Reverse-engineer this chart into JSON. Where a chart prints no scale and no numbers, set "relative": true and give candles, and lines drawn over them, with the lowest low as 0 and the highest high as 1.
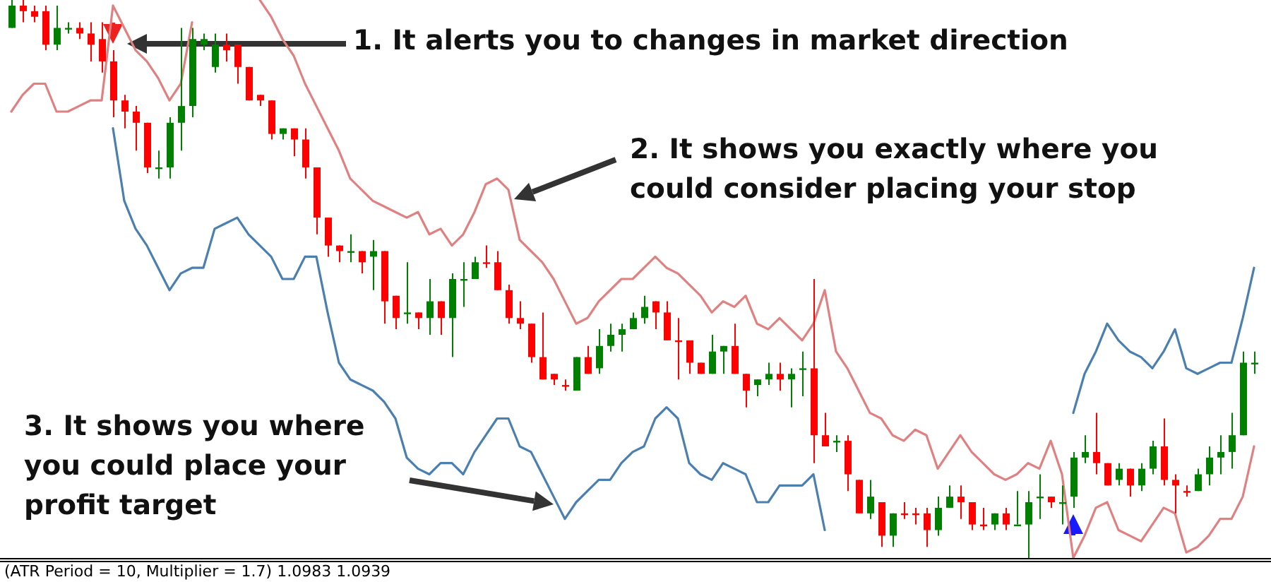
{
  "chart_data": {
    "type": "candlestick",
    "relative": true,
    "categories": [
      null,
      null,
      null,
      null,
      null,
      null,
      null,
      null,
      null,
      null,
      null,
      null,
      null,
      null,
      null,
      null,
      null,
      null,
      null,
      null,
      null,
      null,
      null,
      null,
      null,
      null,
      null,
      null,
      null,
      null,
      null,
      null,
      null,
      null,
      null,
      null,
      null,
      null,
      null,
      null,
      null,
      null,
      null,
      null,
      null,
      null,
      null,
      null,
      null,
      null,
      null,
      null,
      null,
      null,
      null,
      null,
      null,
      null,
      null,
      null,
      null,
      null,
      null,
      null,
      null,
      null,
      null,
      null,
      null,
      null,
      null,
      null,
      null,
      null,
      null,
      null,
      null,
      null,
      null,
      null,
      null,
      null,
      null,
      null,
      null,
      null,
      null,
      null,
      null,
      null,
      null,
      null,
      null,
      null,
      null,
      null,
      null,
      null,
      null,
      null,
      null,
      null,
      null,
      null,
      null,
      null,
      null,
      null,
      null,
      null,
      null
    ],
    "ohlc": [
      [
        0.95,
        1,
        0.95,
        0.99
      ],
      [
        0.99,
        1,
        0.96,
        0.98
      ],
      [
        0.98,
        0.99,
        0.96,
        0.97
      ],
      [
        0.98,
        0.99,
        0.91,
        0.92
      ],
      [
        0.92,
        0.99,
        0.91,
        0.95
      ],
      [
        0.95,
        0.96,
        0.94,
        0.95
      ],
      [
        0.95,
        0.96,
        0.93,
        0.94
      ],
      [
        0.94,
        0.96,
        0.89,
        0.92
      ],
      [
        0.93,
        0.96,
        0.87,
        0.89
      ],
      [
        0.89,
        0.91,
        0.79,
        0.82
      ],
      [
        0.82,
        0.83,
        0.77,
        0.8
      ],
      [
        0.8,
        0.81,
        0.73,
        0.78
      ],
      [
        0.78,
        0.78,
        0.69,
        0.7
      ],
      [
        0.7,
        0.73,
        0.68,
        0.7
      ],
      [
        0.7,
        0.79,
        0.68,
        0.78
      ],
      [
        0.78,
        0.95,
        0.73,
        0.81
      ],
      [
        0.81,
        0.95,
        0.79,
        0.93
      ],
      [
        0.92,
        0.94,
        0.91,
        0.93
      ],
      [
        0.88,
        0.94,
        0.87,
        0.92
      ],
      [
        0.92,
        0.94,
        0.89,
        0.91
      ],
      [
        0.92,
        0.92,
        0.85,
        0.88
      ],
      [
        0.88,
        0.88,
        0.82,
        0.82
      ],
      [
        0.83,
        0.83,
        0.81,
        0.82
      ],
      [
        0.82,
        0.82,
        0.75,
        0.76
      ],
      [
        0.76,
        0.77,
        0.75,
        0.77
      ],
      [
        0.77,
        0.77,
        0.72,
        0.75
      ],
      [
        0.75,
        0.77,
        0.68,
        0.7
      ],
      [
        0.7,
        0.7,
        0.58,
        0.61
      ],
      [
        0.61,
        0.61,
        0.54,
        0.56
      ],
      [
        0.56,
        0.56,
        0.53,
        0.55
      ],
      [
        0.55,
        0.58,
        0.53,
        0.55
      ],
      [
        0.55,
        0.55,
        0.51,
        0.53
      ],
      [
        0.54,
        0.57,
        0.48,
        0.55
      ],
      [
        0.55,
        0.55,
        0.42,
        0.46
      ],
      [
        0.47,
        0.47,
        0.41,
        0.43
      ],
      [
        0.44,
        0.53,
        0.42,
        0.44
      ],
      [
        0.44,
        0.44,
        0.41,
        0.43
      ],
      [
        0.43,
        0.5,
        0.4,
        0.46
      ],
      [
        0.46,
        0.46,
        0.4,
        0.43
      ],
      [
        0.43,
        0.51,
        0.36,
        0.5
      ],
      [
        0.5,
        0.53,
        0.45,
        0.5
      ],
      [
        0.5,
        0.54,
        0.5,
        0.53
      ],
      [
        0.53,
        0.56,
        0.52,
        0.53
      ],
      [
        0.53,
        0.55,
        0.48,
        0.48
      ],
      [
        0.48,
        0.49,
        0.42,
        0.43
      ],
      [
        0.43,
        0.46,
        0.41,
        0.42
      ],
      [
        0.42,
        0.42,
        0.35,
        0.36
      ],
      [
        0.36,
        0.44,
        0.32,
        0.32
      ],
      [
        0.33,
        0.33,
        0.31,
        0.32
      ],
      [
        0.31,
        0.32,
        0.3,
        0.31
      ],
      [
        0.3,
        0.36,
        0.3,
        0.36
      ],
      [
        0.36,
        0.38,
        0.33,
        0.33
      ],
      [
        0.34,
        0.41,
        0.33,
        0.38
      ],
      [
        0.38,
        0.42,
        0.37,
        0.4
      ],
      [
        0.4,
        0.42,
        0.37,
        0.41
      ],
      [
        0.41,
        0.44,
        0.41,
        0.43
      ],
      [
        0.43,
        0.47,
        0.42,
        0.45
      ],
      [
        0.46,
        0.46,
        0.41,
        0.44
      ],
      [
        0.44,
        0.46,
        0.39,
        0.39
      ],
      [
        0.39,
        0.43,
        0.32,
        0.39
      ],
      [
        0.39,
        0.39,
        0.33,
        0.35
      ],
      [
        0.35,
        0.35,
        0.33,
        0.33
      ],
      [
        0.33,
        0.4,
        0.33,
        0.37
      ],
      [
        0.37,
        0.38,
        0.33,
        0.38
      ],
      [
        0.38,
        0.42,
        0.33,
        0.33
      ],
      [
        0.33,
        0.33,
        0.27,
        0.3
      ],
      [
        0.31,
        0.32,
        0.29,
        0.32
      ],
      [
        0.32,
        0.35,
        0.31,
        0.33
      ],
      [
        0.33,
        0.35,
        0.3,
        0.32
      ],
      [
        0.32,
        0.34,
        0.27,
        0.33
      ],
      [
        0.34,
        0.37,
        0.29,
        0.34
      ],
      [
        0.34,
        0.5,
        0.17,
        0.22
      ],
      [
        0.22,
        0.26,
        0.2,
        0.2
      ],
      [
        0.21,
        0.22,
        0.19,
        0.21
      ],
      [
        0.21,
        0.22,
        0.12,
        0.15
      ],
      [
        0.14,
        0.14,
        0.08,
        0.08
      ],
      [
        0.08,
        0.14,
        0.07,
        0.11
      ],
      [
        0.1,
        0.1,
        0.02,
        0.04
      ],
      [
        0.04,
        0.08,
        0.02,
        0.08
      ],
      [
        0.08,
        0.1,
        0.07,
        0.08
      ],
      [
        0.08,
        0.09,
        0.06,
        0.08
      ],
      [
        0.08,
        0.09,
        0.02,
        0.05
      ],
      [
        0.05,
        0.11,
        0.04,
        0.09
      ],
      [
        0.09,
        0.13,
        0.09,
        0.11
      ],
      [
        0.11,
        0.13,
        0.07,
        0.1
      ],
      [
        0.1,
        0.1,
        0.05,
        0.06
      ],
      [
        0.06,
        0.09,
        0.05,
        0.06
      ],
      [
        0.06,
        0.08,
        0.05,
        0.08
      ],
      [
        0.08,
        0.09,
        0.05,
        0.06
      ],
      [
        0.06,
        0.12,
        0.06,
        0.06
      ],
      [
        0.06,
        0.12,
        0,
        0.1
      ],
      [
        0.11,
        0.15,
        0.07,
        0.11
      ],
      [
        0.11,
        0.11,
        0.09,
        0.1
      ],
      [
        0.1,
        0.13,
        0.06,
        0.1
      ],
      [
        0.11,
        0.19,
        0.09,
        0.18
      ],
      [
        0.18,
        0.22,
        0.17,
        0.19
      ],
      [
        0.19,
        0.26,
        0.15,
        0.17
      ],
      [
        0.17,
        0.17,
        0.13,
        0.13
      ],
      [
        0.14,
        0.17,
        0.13,
        0.16
      ],
      [
        0.16,
        0.16,
        0.11,
        0.13
      ],
      [
        0.13,
        0.17,
        0.12,
        0.16
      ],
      [
        0.16,
        0.21,
        0.15,
        0.2
      ],
      [
        0.2,
        0.25,
        0.13,
        0.14
      ],
      [
        0.14,
        0.15,
        0.08,
        0.13
      ],
      [
        0.12,
        0.13,
        0.11,
        0.12
      ],
      [
        0.12,
        0.16,
        0.12,
        0.15
      ],
      [
        0.15,
        0.2,
        0.13,
        0.18
      ],
      [
        0.18,
        0.22,
        0.15,
        0.19
      ],
      [
        0.19,
        0.26,
        0.16,
        0.22
      ],
      [
        0.22,
        0.37,
        0.22,
        0.35
      ],
      [
        0.35,
        0.37,
        0.33,
        0.35
      ]
    ],
    "colors": [
      "#008000",
      "#ff0000",
      "#ff0000",
      "#ff0000",
      "#008000",
      "#008000",
      "#ff0000",
      "#ff0000",
      "#ff0000",
      "#ff0000",
      "#ff0000",
      "#ff0000",
      "#ff0000",
      "#008000",
      "#008000",
      "#008000",
      "#008000",
      "#008000",
      "#008000",
      "#ff0000",
      "#ff0000",
      "#ff0000",
      "#ff0000",
      "#ff0000",
      "#008000",
      "#ff0000",
      "#ff0000",
      "#ff0000",
      "#ff0000",
      "#ff0000",
      "#008000",
      "#ff0000",
      "#008000",
      "#ff0000",
      "#ff0000",
      "#008000",
      "#ff0000",
      "#008000",
      "#ff0000",
      "#008000",
      "#008000",
      "#008000",
      "#ff0000",
      "#ff0000",
      "#ff0000",
      "#ff0000",
      "#ff0000",
      "#ff0000",
      "#ff0000",
      "#ff0000",
      "#008000",
      "#ff0000",
      "#008000",
      "#008000",
      "#008000",
      "#008000",
      "#008000",
      "#ff0000",
      "#ff0000",
      "#ff0000",
      "#ff0000",
      "#ff0000",
      "#008000",
      "#008000",
      "#ff0000",
      "#ff0000",
      "#008000",
      "#008000",
      "#ff0000",
      "#008000",
      "#008000",
      "#ff0000",
      "#ff0000",
      "#008000",
      "#ff0000",
      "#ff0000",
      "#008000",
      "#ff0000",
      "#008000",
      "#ff0000",
      "#ff0000",
      "#ff0000",
      "#008000",
      "#008000",
      "#ff0000",
      "#ff0000",
      "#ff0000",
      "#008000",
      "#ff0000",
      "#008000",
      "#008000",
      "#008000",
      "#ff0000",
      "#008000",
      "#008000",
      "#008000",
      "#ff0000",
      "#ff0000",
      "#008000",
      "#ff0000",
      "#008000",
      "#008000",
      "#ff0000",
      "#ff0000",
      "#ff0000",
      "#008000",
      "#008000",
      "#008000",
      "#008000",
      "#008000",
      "#008000"
    ],
    "series": [
      {
        "type": "line",
        "color": "#e08080",
        "values": [
          0.8,
          0.83,
          0.85,
          0.85,
          0.8,
          0.8,
          0.81,
          0.82,
          0.82,
          0.99,
          0.95,
          0.91,
          0.89,
          0.86,
          0.82,
          0.85,
          0.96,
          null,
          null,
          null,
          null,
          null,
          1.0,
          0.97,
          0.93,
          0.9,
          0.85,
          0.81,
          0.77,
          0.73,
          0.68,
          0.66,
          0.64,
          0.63,
          0.62,
          0.61,
          0.62,
          0.58,
          0.59,
          0.56,
          0.58,
          0.62,
          0.67,
          0.68,
          0.66,
          0.57,
          0.55,
          0.53,
          0.5,
          0.46,
          0.42,
          0.43,
          0.46,
          0.48,
          0.5,
          0.5,
          0.52,
          0.54,
          0.52,
          0.51,
          0.49,
          0.47,
          0.44,
          0.46,
          0.45,
          0.47,
          0.42,
          0.41,
          0.43,
          0.41,
          0.39,
          0.42,
          0.48,
          0.37,
          0.34,
          0.3,
          0.26,
          0.25,
          0.22,
          0.21,
          0.23,
          0.22,
          0.16,
          0.19,
          0.22,
          0.19,
          0.17,
          0.15,
          0.14,
          0.15,
          0.17,
          0.16,
          0.21,
          0.15,
          0.0,
          0.04,
          0.09,
          0.1,
          0.05,
          0.04,
          0.03,
          0.06,
          0.09,
          0.08,
          0.01,
          0.02,
          0.04,
          0.07,
          0.07,
          0.11,
          0.2
        ]
      },
      {
        "type": "line",
        "color": "#4a7fb0",
        "values": [
          null,
          null,
          null,
          null,
          null,
          null,
          null,
          null,
          null,
          0.77,
          0.64,
          0.59,
          0.56,
          0.52,
          0.48,
          0.51,
          0.52,
          0.52,
          0.59,
          0.6,
          0.61,
          0.58,
          0.56,
          0.54,
          0.5,
          0.5,
          0.54,
          0.54,
          0.44,
          0.35,
          0.32,
          0.31,
          0.3,
          0.28,
          0.25,
          0.18,
          0.16,
          0.15,
          0.17,
          0.17,
          0.15,
          0.19,
          0.22,
          0.25,
          0.25,
          0.2,
          0.19,
          0.15,
          0.11,
          0.07,
          0.1,
          0.12,
          0.14,
          0.14,
          0.17,
          0.19,
          0.2,
          0.25,
          0.27,
          0.25,
          0.17,
          0.15,
          0.14,
          0.17,
          0.16,
          0.15,
          0.1,
          0.1,
          0.13,
          0.13,
          0.13,
          0.15,
          0.05,
          null,
          null,
          null,
          null,
          null,
          null,
          null,
          null,
          null,
          null,
          null,
          null,
          null,
          null,
          null,
          null,
          null,
          null,
          null,
          null,
          null,
          0.26,
          0.33,
          0.37,
          0.42,
          0.39,
          0.37,
          0.36,
          0.34,
          0.37,
          0.41,
          0.34,
          0.33,
          0.34,
          0.35,
          0.35,
          0.43,
          0.52
        ]
      }
    ],
    "annotations": [
      "1. It alerts you to changes in market direction",
      "2. It shows you exactly where you could consider placing your stop",
      "3. It shows you where you could place your profit target",
      "(ATR Period = 10, Multiplier = 1.7) 1.0983 1.0939"
    ]
  }
}
